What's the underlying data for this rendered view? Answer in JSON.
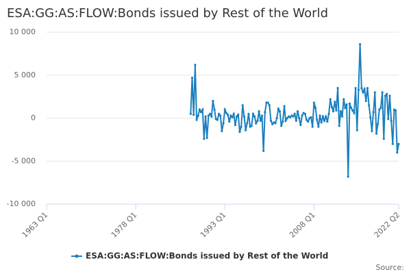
{
  "chart_data": {
    "type": "line",
    "title": "ESA:GG:AS:FLOW:Bonds issued by Rest of the World",
    "source": "Source:",
    "x": [
      "1987 Q2",
      "1987 Q3",
      "1987 Q4",
      "1988 Q1",
      "1988 Q2",
      "1988 Q3",
      "1988 Q4",
      "1989 Q1",
      "1989 Q2",
      "1989 Q3",
      "1989 Q4",
      "1990 Q1",
      "1990 Q2",
      "1990 Q3",
      "1990 Q4",
      "1991 Q1",
      "1991 Q2",
      "1991 Q3",
      "1991 Q4",
      "1992 Q1",
      "1992 Q2",
      "1992 Q3",
      "1992 Q4",
      "1993 Q1",
      "1993 Q2",
      "1993 Q3",
      "1993 Q4",
      "1994 Q1",
      "1994 Q2",
      "1994 Q3",
      "1994 Q4",
      "1995 Q1",
      "1995 Q2",
      "1995 Q3",
      "1995 Q4",
      "1996 Q1",
      "1996 Q2",
      "1996 Q3",
      "1996 Q4",
      "1997 Q1",
      "1997 Q2",
      "1997 Q3",
      "1997 Q4",
      "1998 Q1",
      "1998 Q2",
      "1998 Q3",
      "1998 Q4",
      "1999 Q1",
      "1999 Q2",
      "1999 Q3",
      "1999 Q4",
      "2000 Q1",
      "2000 Q2",
      "2000 Q3",
      "2000 Q4",
      "2001 Q1",
      "2001 Q2",
      "2001 Q3",
      "2001 Q4",
      "2002 Q1",
      "2002 Q2",
      "2002 Q3",
      "2002 Q4",
      "2003 Q1",
      "2003 Q2",
      "2003 Q3",
      "2003 Q4",
      "2004 Q1",
      "2004 Q2",
      "2004 Q3",
      "2004 Q4",
      "2005 Q1",
      "2005 Q2",
      "2005 Q3",
      "2005 Q4",
      "2006 Q1",
      "2006 Q2",
      "2006 Q3",
      "2006 Q4",
      "2007 Q1",
      "2007 Q2",
      "2007 Q3",
      "2007 Q4",
      "2008 Q1",
      "2008 Q2",
      "2008 Q3",
      "2008 Q4",
      "2009 Q1",
      "2009 Q2",
      "2009 Q3",
      "2009 Q4",
      "2010 Q1",
      "2010 Q2",
      "2010 Q3",
      "2010 Q4",
      "2011 Q1",
      "2011 Q2",
      "2011 Q3",
      "2011 Q4",
      "2012 Q1",
      "2012 Q2",
      "2012 Q3",
      "2012 Q4",
      "2013 Q1",
      "2013 Q2",
      "2013 Q3",
      "2013 Q4",
      "2014 Q1",
      "2014 Q2",
      "2014 Q3",
      "2014 Q4",
      "2015 Q1",
      "2015 Q2",
      "2015 Q3",
      "2015 Q4",
      "2016 Q1",
      "2016 Q2",
      "2016 Q3",
      "2016 Q4",
      "2017 Q1",
      "2017 Q2",
      "2017 Q3",
      "2017 Q4",
      "2018 Q1",
      "2018 Q2",
      "2018 Q3",
      "2018 Q4",
      "2019 Q1",
      "2019 Q2",
      "2019 Q3",
      "2019 Q4",
      "2020 Q1",
      "2020 Q2",
      "2020 Q3",
      "2020 Q4",
      "2021 Q1",
      "2021 Q2",
      "2021 Q3",
      "2021 Q4",
      "2022 Q1",
      "2022 Q2"
    ],
    "series": [
      {
        "name": "ESA:GG:AS:FLOW:Bonds issued by Rest of the World",
        "color": "#1a7fbf",
        "values": [
          500,
          4700,
          400,
          6200,
          -200,
          300,
          1000,
          700,
          1000,
          -2400,
          200,
          -2300,
          300,
          500,
          200,
          2000,
          1000,
          -100,
          -200,
          500,
          300,
          -1500,
          -600,
          1000,
          600,
          400,
          -400,
          300,
          100,
          500,
          -800,
          200,
          400,
          -1600,
          -1000,
          1500,
          200,
          -1400,
          -600,
          500,
          -1000,
          -900,
          500,
          200,
          -600,
          -300,
          800,
          -300,
          300,
          -3800,
          700,
          1800,
          1800,
          1500,
          -300,
          -700,
          -500,
          -600,
          0,
          1100,
          800,
          -900,
          -400,
          1400,
          -300,
          0,
          200,
          100,
          300,
          200,
          500,
          -300,
          800,
          0,
          -800,
          300,
          600,
          500,
          -200,
          -400,
          0,
          100,
          -1000,
          1800,
          1200,
          -200,
          -1000,
          300,
          -500,
          200,
          -300,
          200,
          -400,
          500,
          2200,
          1300,
          800,
          1900,
          900,
          3500,
          -900,
          800,
          200,
          2200,
          1200,
          1600,
          -6800,
          1700,
          1200,
          900,
          600,
          3500,
          -1400,
          3300,
          8600,
          3500,
          3000,
          3400,
          2000,
          3500,
          1500,
          100,
          -1500,
          700,
          3000,
          -1800,
          -700,
          1000,
          1200,
          3000,
          -2400,
          2600,
          2800,
          -100,
          2600,
          -300,
          -3000,
          1000,
          900,
          -4000,
          -3000
        ]
      }
    ],
    "xlim": [
      "1963 Q1",
      "2022 Q2"
    ],
    "xticks": [
      "1963 Q1",
      "1978 Q1",
      "1993 Q1",
      "2008 Q1",
      "2022 Q2"
    ],
    "ylim": [
      -10000,
      10000
    ],
    "yticks": [
      {
        "value": -10000,
        "label": "-10 000"
      },
      {
        "value": -5000,
        "label": "-5 000"
      },
      0,
      {
        "value": 5000,
        "label": "5 000"
      },
      {
        "value": 10000,
        "label": "10 000"
      }
    ],
    "grid": true,
    "legend": "bottom"
  }
}
